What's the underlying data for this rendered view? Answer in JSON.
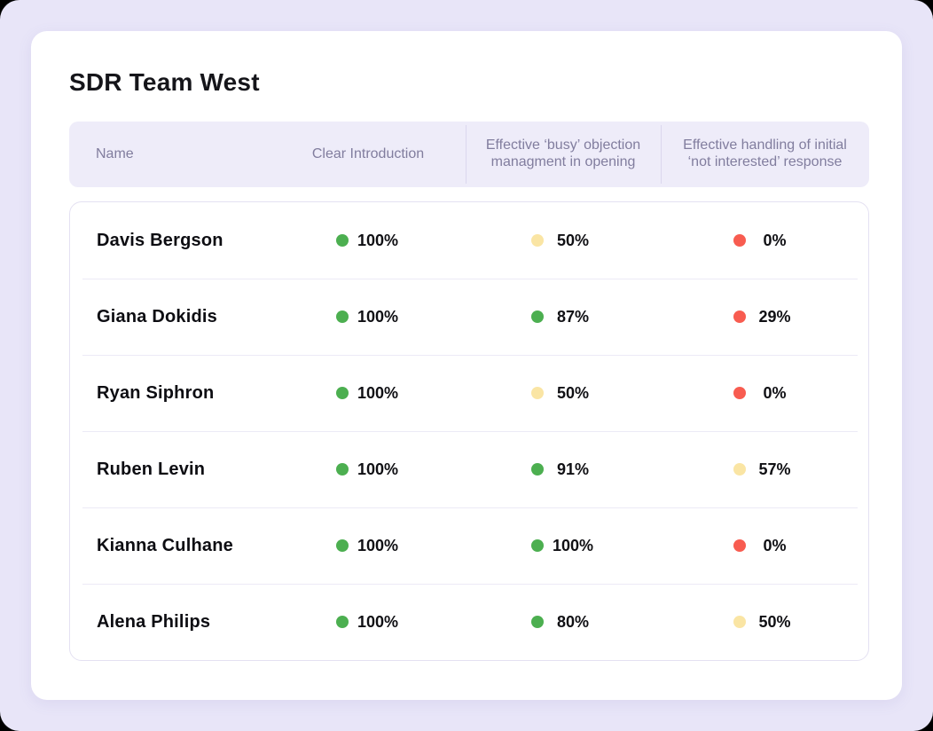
{
  "page": {
    "title": "SDR Team West"
  },
  "table": {
    "columns": [
      {
        "label": "Name"
      },
      {
        "label": "Clear Introduction"
      },
      {
        "label": "Effective ‘busy’ objection managment in opening"
      },
      {
        "label": "Effective handling of initial ‘not interested’ response"
      }
    ],
    "rows": [
      {
        "name": "Davis Bergson",
        "scores": [
          {
            "value": "100%",
            "status": "green"
          },
          {
            "value": "50%",
            "status": "yellow"
          },
          {
            "value": "0%",
            "status": "red"
          }
        ]
      },
      {
        "name": "Giana Dokidis",
        "scores": [
          {
            "value": "100%",
            "status": "green"
          },
          {
            "value": "87%",
            "status": "green"
          },
          {
            "value": "29%",
            "status": "red"
          }
        ]
      },
      {
        "name": "Ryan Siphron",
        "scores": [
          {
            "value": "100%",
            "status": "green"
          },
          {
            "value": "50%",
            "status": "yellow"
          },
          {
            "value": "0%",
            "status": "red"
          }
        ]
      },
      {
        "name": "Ruben Levin",
        "scores": [
          {
            "value": "100%",
            "status": "green"
          },
          {
            "value": "91%",
            "status": "green"
          },
          {
            "value": "57%",
            "status": "yellow"
          }
        ]
      },
      {
        "name": "Kianna Culhane",
        "scores": [
          {
            "value": "100%",
            "status": "green"
          },
          {
            "value": "100%",
            "status": "green"
          },
          {
            "value": "0%",
            "status": "red"
          }
        ]
      },
      {
        "name": "Alena Philips",
        "scores": [
          {
            "value": "100%",
            "status": "green"
          },
          {
            "value": "80%",
            "status": "green"
          },
          {
            "value": "50%",
            "status": "yellow"
          }
        ]
      }
    ]
  },
  "colors": {
    "green": "#4CAF50",
    "yellow": "#FAE5A4",
    "red": "#F85C50",
    "header_bg": "#EEECF9",
    "page_bg": "#E8E5F8"
  }
}
